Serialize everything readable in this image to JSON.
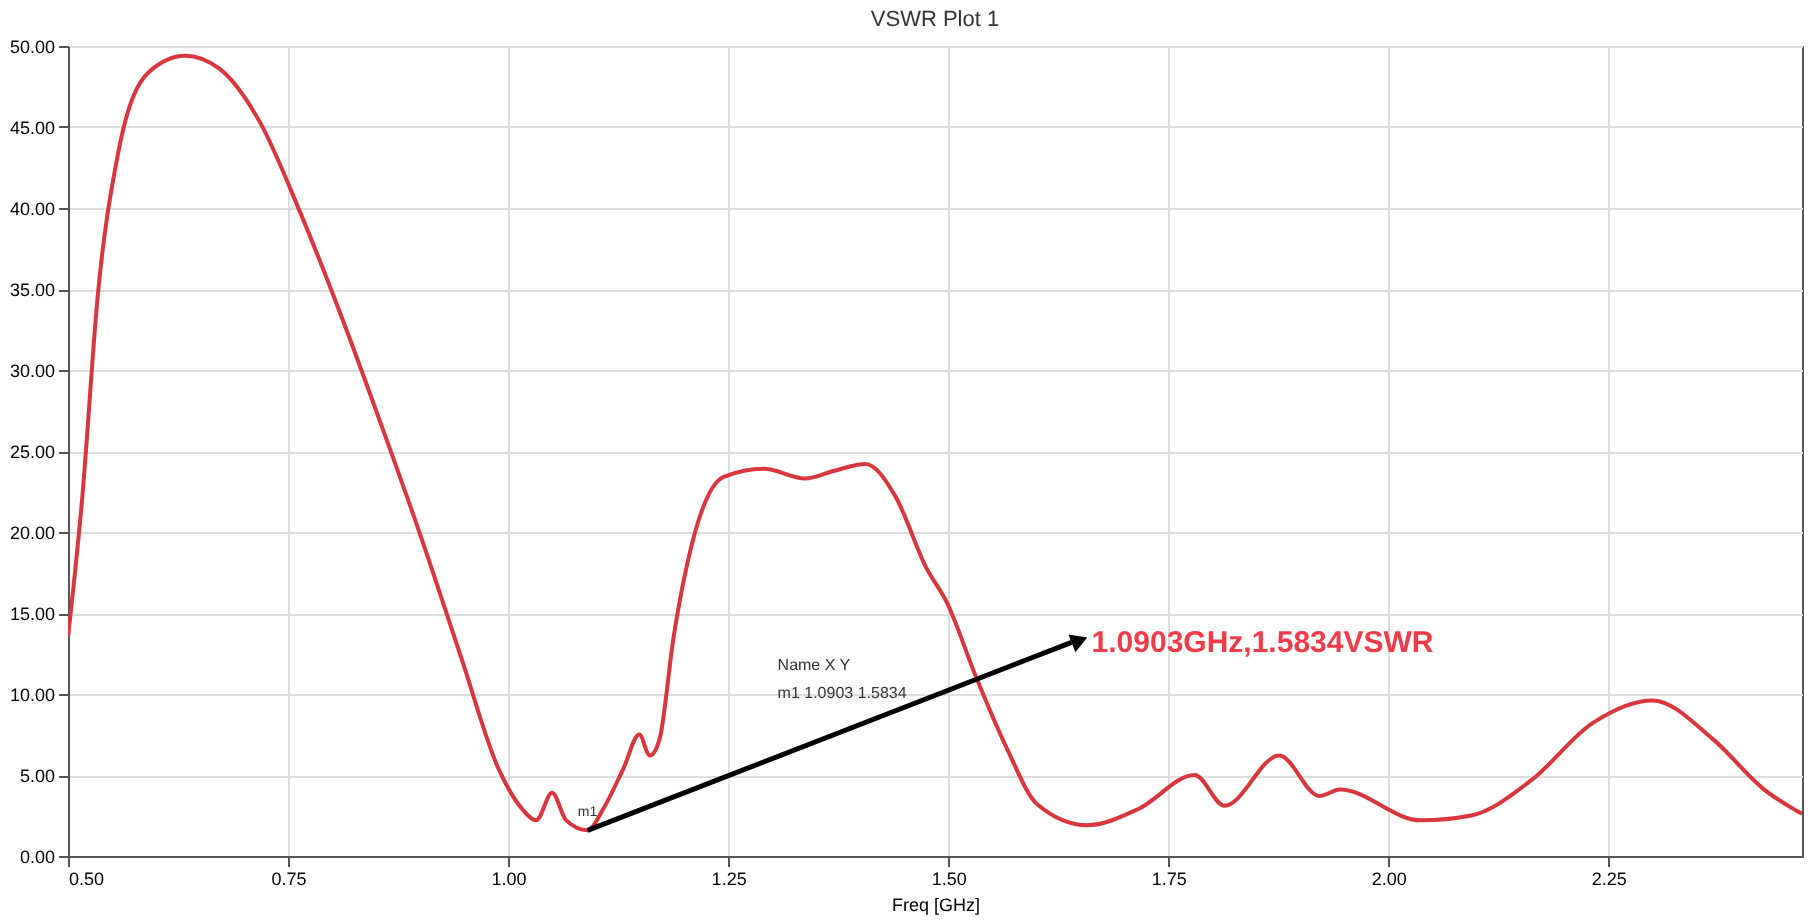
{
  "chart_data": {
    "type": "line",
    "title": "VSWR Plot 1",
    "xlabel": "Freq [GHz]",
    "x": [
      0.5,
      0.516,
      0.534,
      0.557,
      0.592,
      0.633,
      0.672,
      0.718,
      0.764,
      0.81,
      0.856,
      0.901,
      0.947,
      0.989,
      1.016,
      1.032,
      1.05,
      1.066,
      1.0903,
      1.108,
      1.131,
      1.149,
      1.161,
      1.172,
      1.188,
      1.211,
      1.245,
      1.291,
      1.337,
      1.372,
      1.406,
      1.44,
      1.475,
      1.498,
      1.532,
      1.567,
      1.601,
      1.658,
      1.716,
      1.78,
      1.814,
      1.876,
      1.922,
      1.945,
      2.037,
      2.094,
      2.163,
      2.232,
      2.3,
      2.369,
      2.427,
      2.47
    ],
    "series": [
      {
        "color": "#d9363e",
        "values": [
          13.5,
          22,
          34.7,
          43.4,
          48.4,
          49.4,
          48.6,
          45.3,
          39.7,
          33.4,
          26.6,
          19.7,
          12.2,
          5.4,
          2.9,
          2.2,
          3.9,
          2.2,
          1.5834,
          2.9,
          5.4,
          7.5,
          6.2,
          7.2,
          13.5,
          19.7,
          23.4,
          23.9,
          23.3,
          23.8,
          24.2,
          22.2,
          17.8,
          15.7,
          11,
          6.6,
          3.2,
          1.9,
          2.9,
          5,
          3.1,
          6.2,
          3.7,
          4.1,
          2.2,
          2.5,
          4.7,
          8.2,
          9.6,
          7.2,
          4.1,
          2.6
        ]
      }
    ],
    "xlim": [
      0.5,
      2.47
    ],
    "xticks": [
      {
        "value": 0.5,
        "label": "0.50"
      },
      {
        "value": 0.75,
        "label": "0.75"
      },
      {
        "value": 1,
        "label": "1.00"
      },
      {
        "value": 1.25,
        "label": "1.25"
      },
      {
        "value": 1.5,
        "label": "1.50"
      },
      {
        "value": 1.75,
        "label": "1.75"
      },
      {
        "value": 2,
        "label": "2.00"
      },
      {
        "value": 2.25,
        "label": "2.25"
      }
    ],
    "ylim": [
      0,
      50
    ],
    "yticks": [
      {
        "value": 0,
        "label": "0.00"
      },
      {
        "value": 5,
        "label": "5.00"
      },
      {
        "value": 10,
        "label": "10.00"
      },
      {
        "value": 15,
        "label": "15.00"
      },
      {
        "value": 20,
        "label": "20.00"
      },
      {
        "value": 25,
        "label": "25.00"
      },
      {
        "value": 30,
        "label": "30.00"
      },
      {
        "value": 35,
        "label": "35.00"
      },
      {
        "value": 40,
        "label": "40.00"
      },
      {
        "value": 45,
        "label": "45.00"
      },
      {
        "value": 50,
        "label": "50.00"
      }
    ],
    "grid": true,
    "annotations": [
      {
        "text": "1.0903GHz,1.5834VSWR",
        "x": 1.0903,
        "y": 1.5834
      },
      {
        "text": "m1",
        "x": 1.0903,
        "y": 1.5834
      },
      "Name  X  Y",
      "m1  1.0903  1.5834"
    ]
  }
}
